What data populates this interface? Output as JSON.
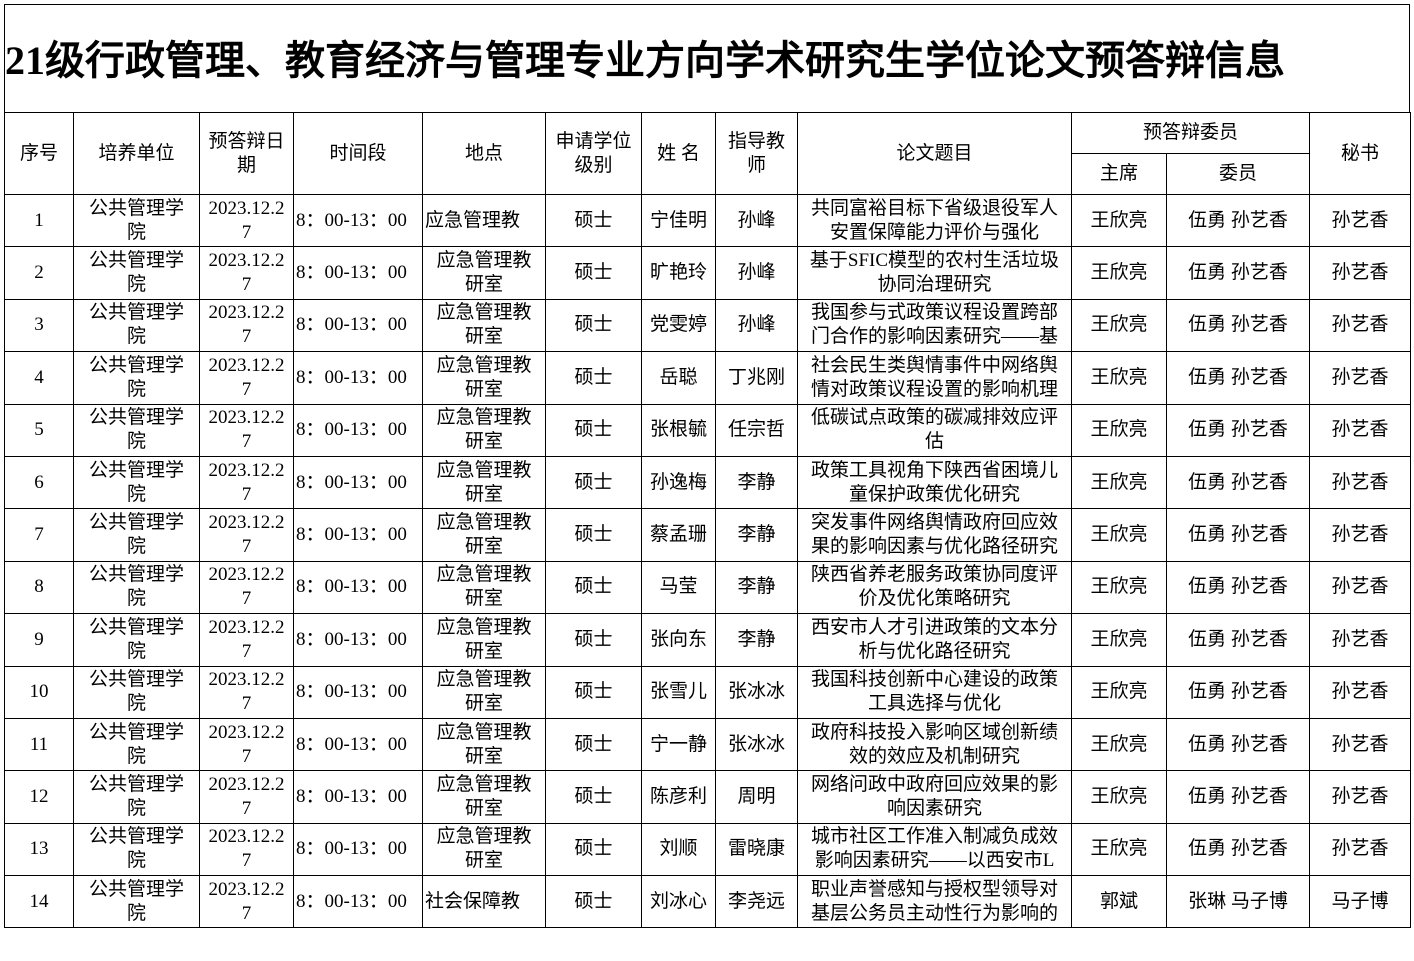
{
  "title": "21级行政管理、教育经济与管理专业方向学术研究生学位论文预答辩信息",
  "table": {
    "headers": [
      "序号",
      "培养单位",
      "预答辩日期",
      "时间段",
      "地点",
      "申请学位级别",
      "姓 名",
      "指导教师",
      "论文题目",
      "主席",
      "委员",
      "秘书"
    ],
    "group_header": "预答辩委员",
    "rows": [
      [
        "1",
        "公共管理学院",
        "2023.12.27",
        "8：00-13：00",
        "应急管理教",
        "硕士",
        "宁佳明",
        "孙峰",
        "共同富裕目标下省级退役军人安置保障能力评价与强化",
        "王欣亮",
        "伍勇  孙艺香",
        "孙艺香"
      ],
      [
        "2",
        "公共管理学院",
        "2023.12.27",
        "8：00-13：00",
        "应急管理教研室",
        "硕士",
        "旷艳玲",
        "孙峰",
        "基于SFIC模型的农村生活垃圾协同治理研究",
        "王欣亮",
        "伍勇  孙艺香",
        "孙艺香"
      ],
      [
        "3",
        "公共管理学院",
        "2023.12.27",
        "8：00-13：00",
        "应急管理教研室",
        "硕士",
        "党雯婷",
        "孙峰",
        "我国参与式政策议程设置跨部门合作的影响因素研究——基",
        "王欣亮",
        "伍勇  孙艺香",
        "孙艺香"
      ],
      [
        "4",
        "公共管理学院",
        "2023.12.27",
        "8：00-13：00",
        "应急管理教研室",
        "硕士",
        "岳聪",
        "丁兆刚",
        "社会民生类舆情事件中网络舆情对政策议程设置的影响机理",
        "王欣亮",
        "伍勇  孙艺香",
        "孙艺香"
      ],
      [
        "5",
        "公共管理学院",
        "2023.12.27",
        "8：00-13：00",
        "应急管理教研室",
        "硕士",
        "张根毓",
        "任宗哲",
        "低碳试点政策的碳减排效应评估",
        "王欣亮",
        "伍勇  孙艺香",
        "孙艺香"
      ],
      [
        "6",
        "公共管理学院",
        "2023.12.27",
        "8：00-13：00",
        "应急管理教研室",
        "硕士",
        "孙逸梅",
        "李静",
        "政策工具视角下陕西省困境儿童保护政策优化研究",
        "王欣亮",
        "伍勇  孙艺香",
        "孙艺香"
      ],
      [
        "7",
        "公共管理学院",
        "2023.12.27",
        "8：00-13：00",
        "应急管理教研室",
        "硕士",
        "蔡孟珊",
        "李静",
        "突发事件网络舆情政府回应效果的影响因素与优化路径研究",
        "王欣亮",
        "伍勇  孙艺香",
        "孙艺香"
      ],
      [
        "8",
        "公共管理学院",
        "2023.12.27",
        "8：00-13：00",
        "应急管理教研室",
        "硕士",
        "马莹",
        "李静",
        "陕西省养老服务政策协同度评价及优化策略研究",
        "王欣亮",
        "伍勇  孙艺香",
        "孙艺香"
      ],
      [
        "9",
        "公共管理学院",
        "2023.12.27",
        "8：00-13：00",
        "应急管理教研室",
        "硕士",
        "张向东",
        "李静",
        "西安市人才引进政策的文本分析与优化路径研究",
        "王欣亮",
        "伍勇  孙艺香",
        "孙艺香"
      ],
      [
        "10",
        "公共管理学院",
        "2023.12.27",
        "8：00-13：00",
        "应急管理教研室",
        "硕士",
        "张雪儿",
        "张冰冰",
        "我国科技创新中心建设的政策工具选择与优化",
        "王欣亮",
        "伍勇  孙艺香",
        "孙艺香"
      ],
      [
        "11",
        "公共管理学院",
        "2023.12.27",
        "8：00-13：00",
        "应急管理教研室",
        "硕士",
        "宁一静",
        "张冰冰",
        "政府科技投入影响区域创新绩效的效应及机制研究",
        "王欣亮",
        "伍勇  孙艺香",
        "孙艺香"
      ],
      [
        "12",
        "公共管理学院",
        "2023.12.27",
        "8：00-13：00",
        "应急管理教研室",
        "硕士",
        "陈彦利",
        "周明",
        "网络问政中政府回应效果的影响因素研究",
        "王欣亮",
        "伍勇  孙艺香",
        "孙艺香"
      ],
      [
        "13",
        "公共管理学院",
        "2023.12.27",
        "8：00-13：00",
        "应急管理教研室",
        "硕士",
        "刘顺",
        "雷晓康",
        "城市社区工作准入制减负成效影响因素研究——以西安市L",
        "王欣亮",
        "伍勇  孙艺香",
        "孙艺香"
      ],
      [
        "14",
        "公共管理学院",
        "2023.12.27",
        "8：00-13：00",
        "社会保障教",
        "硕士",
        "刘冰心",
        "李尧远",
        "职业声誉感知与授权型领导对基层公务员主动性行为影响的",
        "郭斌",
        "张琳  马子博",
        "马子博"
      ]
    ]
  }
}
